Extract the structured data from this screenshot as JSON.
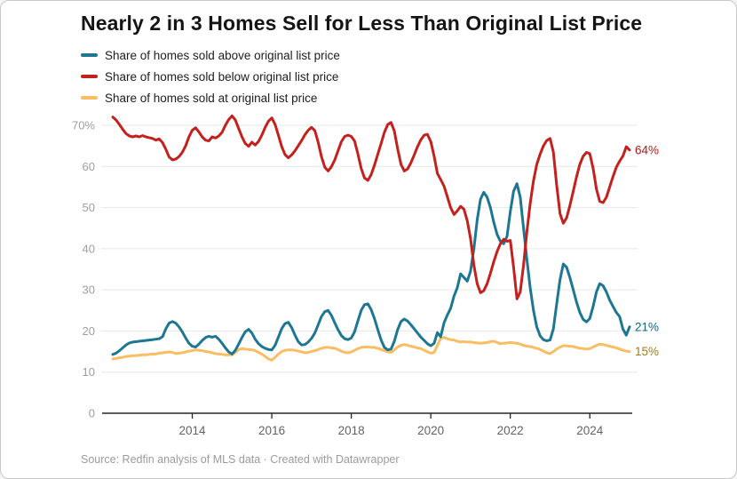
{
  "title": "Nearly 2 in 3 Homes Sell for Less Than Original List Price",
  "footer": {
    "source_note": "Source: Redfin analysis of MLS data · Created with Datawrapper"
  },
  "chart_data": {
    "type": "line",
    "title": "Nearly 2 in 3 Homes Sell for Less Than Original List Price",
    "x_start": "2012-01",
    "x_end": "2025-01",
    "freq": "monthly",
    "ylim": [
      0,
      73
    ],
    "grid": "horizontal",
    "legend_position": "top-left",
    "y_ticks": [
      {
        "value": 70,
        "label": "70%"
      },
      {
        "value": 60,
        "label": "60"
      },
      {
        "value": 50,
        "label": "50"
      },
      {
        "value": 40,
        "label": "40"
      },
      {
        "value": 30,
        "label": "30"
      },
      {
        "value": 20,
        "label": "20"
      },
      {
        "value": 10,
        "label": "10"
      },
      {
        "value": 0,
        "label": "0"
      }
    ],
    "x_tick_years": [
      2014,
      2016,
      2018,
      2020,
      2022,
      2024
    ],
    "series": [
      {
        "name": "Share of homes sold above original list price",
        "color": "#1d7792",
        "end_label": "21%",
        "end_label_color": "#10647f",
        "values": [
          14.3,
          14.6,
          15.2,
          15.9,
          16.6,
          17.1,
          17.3,
          17.4,
          17.5,
          17.6,
          17.7,
          17.8,
          17.9,
          18.0,
          18.1,
          18.6,
          20.5,
          21.9,
          22.3,
          21.9,
          21.0,
          19.8,
          18.3,
          17.0,
          16.3,
          16.1,
          16.8,
          17.7,
          18.4,
          18.7,
          18.5,
          18.7,
          18.0,
          17.0,
          15.9,
          14.9,
          14.4,
          15.3,
          16.8,
          18.4,
          19.8,
          20.4,
          19.5,
          18.0,
          16.9,
          16.2,
          15.8,
          15.5,
          15.4,
          16.5,
          18.5,
          20.6,
          21.8,
          22.1,
          20.8,
          19.0,
          17.4,
          16.6,
          16.7,
          17.3,
          18.2,
          19.5,
          21.5,
          23.5,
          24.7,
          25.0,
          23.8,
          22.0,
          20.3,
          18.9,
          18.1,
          17.9,
          18.3,
          19.8,
          22.5,
          25.0,
          26.4,
          26.6,
          25.2,
          23.0,
          20.3,
          17.8,
          16.0,
          15.4,
          15.6,
          17.5,
          20.3,
          22.3,
          22.9,
          22.4,
          21.5,
          20.5,
          19.5,
          18.5,
          17.7,
          16.9,
          16.4,
          17.0,
          19.6,
          18.6,
          22.0,
          23.9,
          25.5,
          28.5,
          30.5,
          33.9,
          33.0,
          32.1,
          34.5,
          40.0,
          47.0,
          52.0,
          53.7,
          52.5,
          50.0,
          46.5,
          43.5,
          41.8,
          41.2,
          43.0,
          49.0,
          54.0,
          55.8,
          52.5,
          45.0,
          37.5,
          30.5,
          25.0,
          21.0,
          18.8,
          17.9,
          17.6,
          17.8,
          20.5,
          26.5,
          32.5,
          36.3,
          35.5,
          33.0,
          30.0,
          27.0,
          24.5,
          22.8,
          22.2,
          23.0,
          26.0,
          29.5,
          31.5,
          31.0,
          29.5,
          27.5,
          26.0,
          24.5,
          23.5,
          20.5,
          19.0,
          21.0
        ]
      },
      {
        "name": "Share of homes sold below original list price",
        "color": "#c4201d",
        "end_label": "64%",
        "end_label_color": "#b31a15",
        "values": [
          72.0,
          71.3,
          70.2,
          69.0,
          68.0,
          67.4,
          67.2,
          67.4,
          67.2,
          67.5,
          67.2,
          67.0,
          66.8,
          66.4,
          66.7,
          65.8,
          64.2,
          62.3,
          61.6,
          61.8,
          62.4,
          63.4,
          65.0,
          67.2,
          68.8,
          69.4,
          68.4,
          67.2,
          66.4,
          66.2,
          67.2,
          66.9,
          67.4,
          68.3,
          70.0,
          71.4,
          72.3,
          71.3,
          69.2,
          67.2,
          65.6,
          64.9,
          65.9,
          65.2,
          66.1,
          67.6,
          69.5,
          71.0,
          71.8,
          70.2,
          67.6,
          64.8,
          62.9,
          62.1,
          62.8,
          63.8,
          65.0,
          66.3,
          67.7,
          68.8,
          69.5,
          68.7,
          65.9,
          62.4,
          59.8,
          58.9,
          59.9,
          61.6,
          63.8,
          66.0,
          67.3,
          67.6,
          67.3,
          66.2,
          63.0,
          59.5,
          57.2,
          56.6,
          58.0,
          60.3,
          63.0,
          65.6,
          68.3,
          70.2,
          70.7,
          68.6,
          64.3,
          60.5,
          58.9,
          59.4,
          60.9,
          62.8,
          64.8,
          66.5,
          67.6,
          67.8,
          66.0,
          62.5,
          58.3,
          56.8,
          55.2,
          52.6,
          50.0,
          48.3,
          49.2,
          50.3,
          49.6,
          46.8,
          42.5,
          36.0,
          31.5,
          29.3,
          29.8,
          31.5,
          34.0,
          36.8,
          39.3,
          41.2,
          42.3,
          41.8,
          42.0,
          35.5,
          27.8,
          29.5,
          36.0,
          44.0,
          51.0,
          56.5,
          60.5,
          63.0,
          65.0,
          66.3,
          66.8,
          63.5,
          55.5,
          48.5,
          46.2,
          47.5,
          50.5,
          54.0,
          57.5,
          60.5,
          62.5,
          63.4,
          63.1,
          59.5,
          54.5,
          51.5,
          51.2,
          52.5,
          55.0,
          57.5,
          59.8,
          61.3,
          62.5,
          64.8,
          64.0
        ]
      },
      {
        "name": "Share of homes sold at original list price",
        "color": "#fabd62",
        "end_label": "15%",
        "end_label_color": "#9c7d1c",
        "values": [
          13.2,
          13.3,
          13.5,
          13.6,
          13.8,
          13.9,
          14.0,
          14.0,
          14.1,
          14.2,
          14.2,
          14.3,
          14.4,
          14.4,
          14.6,
          14.7,
          14.8,
          14.9,
          14.8,
          14.5,
          14.6,
          14.7,
          14.9,
          15.1,
          15.2,
          15.4,
          15.3,
          15.2,
          15.0,
          14.9,
          14.7,
          14.5,
          14.4,
          14.3,
          14.2,
          14.2,
          14.2,
          14.8,
          15.5,
          15.7,
          15.6,
          15.5,
          15.4,
          15.2,
          14.8,
          14.4,
          13.8,
          13.2,
          12.9,
          13.6,
          14.4,
          15.0,
          15.3,
          15.4,
          15.4,
          15.3,
          15.1,
          14.9,
          14.7,
          14.8,
          15.0,
          15.2,
          15.5,
          15.8,
          16.0,
          16.0,
          15.9,
          15.8,
          15.5,
          15.1,
          14.8,
          14.7,
          14.9,
          15.3,
          15.7,
          16.0,
          16.1,
          16.1,
          16.0,
          16.0,
          15.8,
          15.5,
          15.2,
          14.9,
          14.8,
          15.4,
          16.1,
          16.5,
          16.7,
          16.5,
          16.3,
          16.1,
          15.9,
          15.7,
          15.3,
          14.9,
          14.6,
          14.8,
          16.5,
          18.2,
          18.4,
          18.1,
          17.9,
          17.8,
          17.5,
          17.3,
          17.4,
          17.3,
          17.3,
          17.2,
          17.1,
          17.0,
          17.1,
          17.2,
          17.4,
          17.5,
          17.2,
          16.9,
          17.0,
          17.1,
          17.2,
          17.1,
          17.0,
          16.8,
          16.5,
          16.3,
          16.2,
          16.0,
          15.8,
          15.5,
          15.1,
          14.7,
          14.5,
          15.0,
          15.6,
          16.1,
          16.4,
          16.4,
          16.3,
          16.2,
          16.0,
          15.8,
          15.7,
          15.6,
          15.7,
          16.1,
          16.5,
          16.8,
          16.7,
          16.5,
          16.3,
          16.1,
          15.9,
          15.6,
          15.3,
          15.1,
          15.0
        ]
      }
    ]
  }
}
